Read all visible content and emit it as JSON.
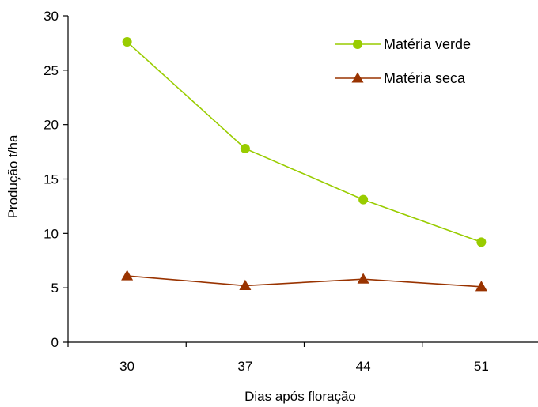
{
  "chart_data": {
    "type": "line",
    "title": "",
    "xlabel": "Dias após floração",
    "ylabel": "Produção t/ha",
    "categories": [
      "30",
      "37",
      "44",
      "51"
    ],
    "ylim": [
      0,
      30
    ],
    "yticks": [
      "0",
      "5",
      "10",
      "15",
      "20",
      "25",
      "30"
    ],
    "grid": false,
    "legend_position": "top-right",
    "series": [
      {
        "name": "Matéria verde",
        "values": [
          27.6,
          17.8,
          13.1,
          9.2
        ],
        "color": "#99CC00",
        "marker": "circle"
      },
      {
        "name": "Matéria seca",
        "values": [
          6.1,
          5.2,
          5.8,
          5.1
        ],
        "color": "#993300",
        "marker": "triangle"
      }
    ]
  }
}
